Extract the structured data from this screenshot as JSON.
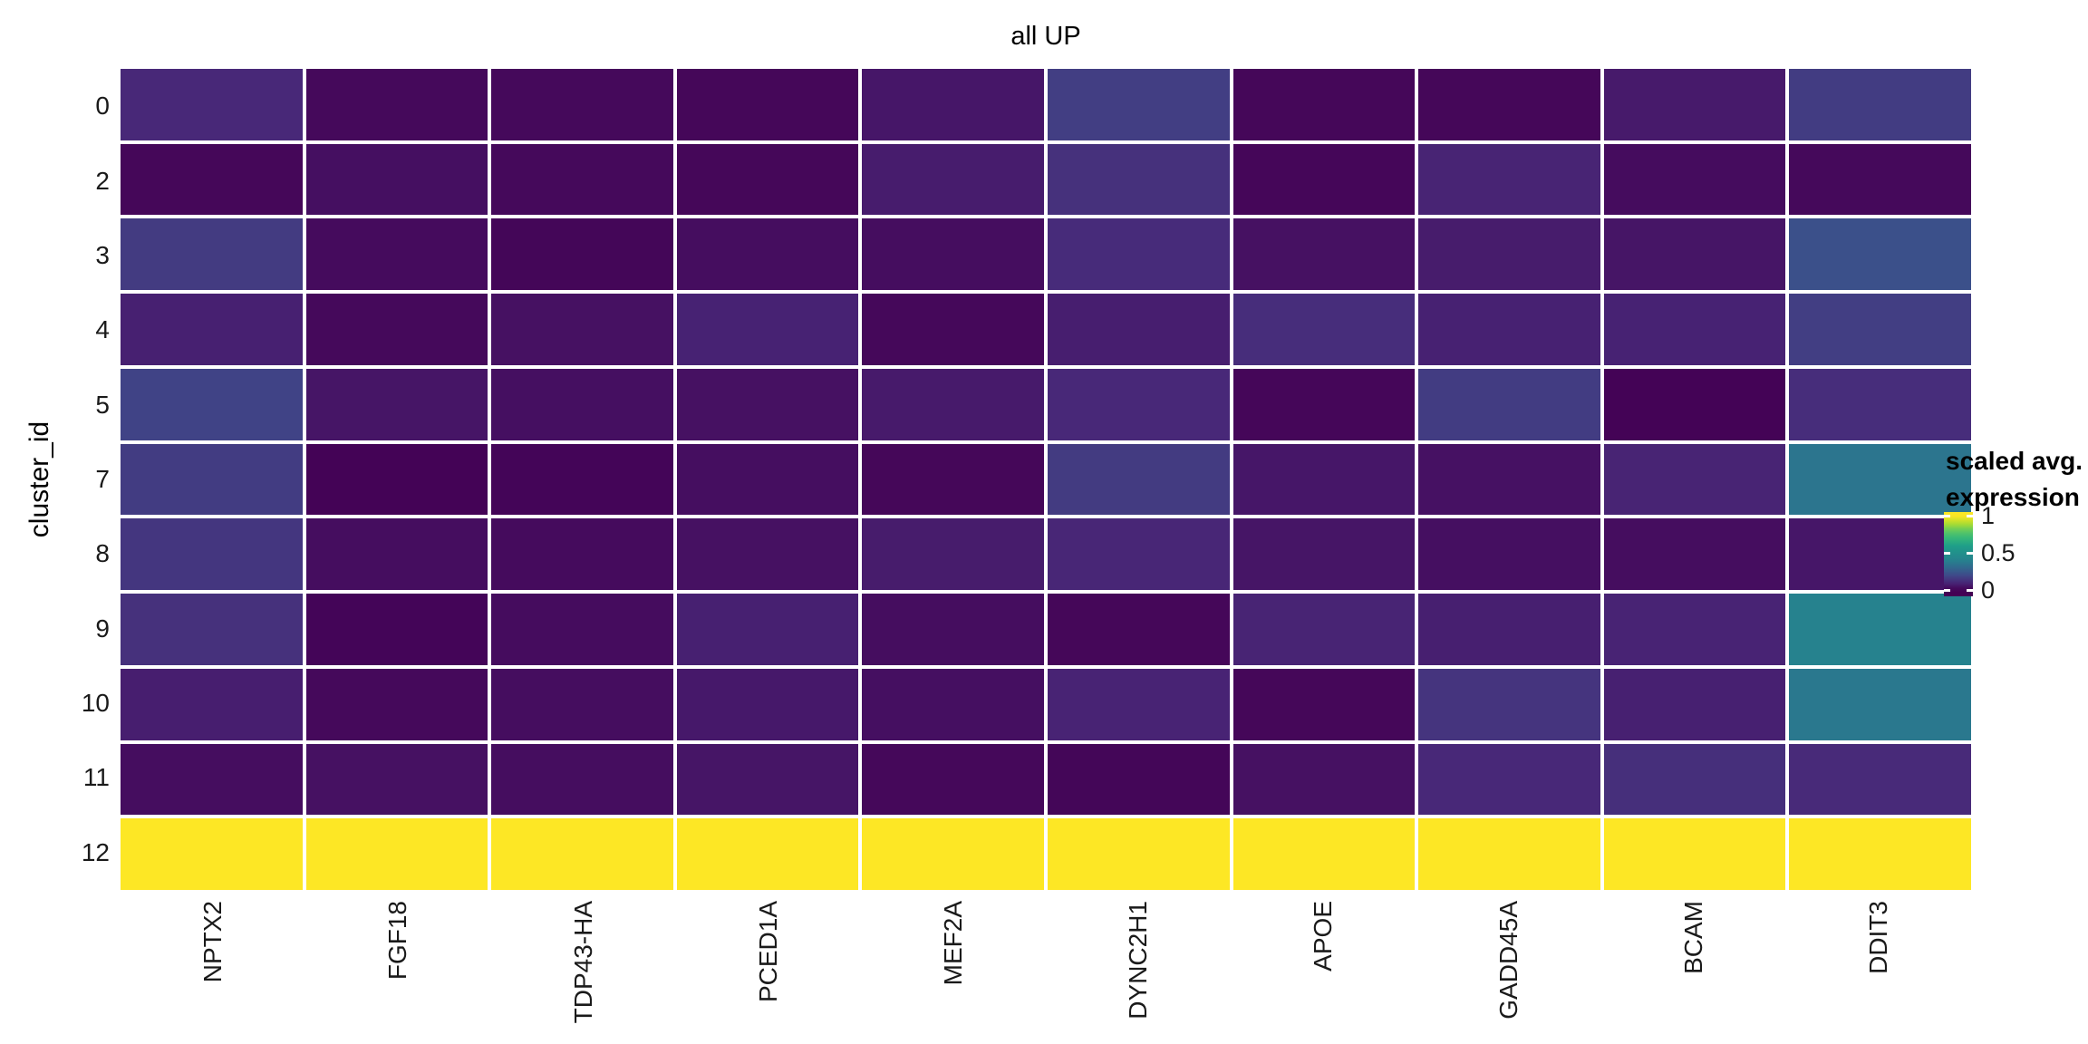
{
  "title": "all UP",
  "legend": {
    "title_line1": "scaled avg.",
    "title_line2": "expression",
    "ticks": [
      {
        "label": "1",
        "value": 1
      },
      {
        "label": "0.5",
        "value": 0.5
      },
      {
        "label": "0",
        "value": 0
      }
    ],
    "bar_domain_top": 1.05,
    "bar_domain_bottom": -0.085
  },
  "colors": {
    "background": "#ffffff",
    "panel_gap": "#ffffff",
    "tick_text": "#1a1a1a",
    "title_text": "#000000",
    "viridis_stops": [
      {
        "t": 0.0,
        "color": "#440154"
      },
      {
        "t": 0.1,
        "color": "#482878"
      },
      {
        "t": 0.2,
        "color": "#3e4a89"
      },
      {
        "t": 0.3,
        "color": "#31688e"
      },
      {
        "t": 0.4,
        "color": "#26828e"
      },
      {
        "t": 0.5,
        "color": "#21908c"
      },
      {
        "t": 0.6,
        "color": "#1fa088"
      },
      {
        "t": 0.7,
        "color": "#35b779"
      },
      {
        "t": 0.8,
        "color": "#5ec962"
      },
      {
        "t": 0.9,
        "color": "#b5de2b"
      },
      {
        "t": 1.0,
        "color": "#fde725"
      }
    ]
  },
  "chart_data": {
    "type": "heatmap",
    "title": "all UP",
    "xlabel": "",
    "ylabel": "cluster_id",
    "legend_title_line1": "scaled avg.",
    "legend_title_line2": "expression",
    "colormap": "viridis",
    "value_range": [
      0,
      1
    ],
    "legend_tick_values": [
      1,
      0.5,
      0
    ],
    "columns": [
      "NPTX2",
      "FGF18",
      "TDP43-HA",
      "PCED1A",
      "MEF2A",
      "DYNC2H1",
      "APOE",
      "GADD45A",
      "BCAM",
      "DDIT3"
    ],
    "rows": [
      "0",
      "2",
      "3",
      "4",
      "5",
      "7",
      "8",
      "9",
      "10",
      "11",
      "12"
    ],
    "values": [
      [
        0.1,
        0.02,
        0.02,
        0.015,
        0.055,
        0.165,
        0.015,
        0.015,
        0.063,
        0.16
      ],
      [
        0.015,
        0.035,
        0.02,
        0.015,
        0.07,
        0.125,
        0.013,
        0.09,
        0.028,
        0.02
      ],
      [
        0.155,
        0.025,
        0.012,
        0.03,
        0.03,
        0.11,
        0.04,
        0.068,
        0.05,
        0.22
      ],
      [
        0.08,
        0.02,
        0.04,
        0.085,
        0.018,
        0.075,
        0.115,
        0.082,
        0.085,
        0.165
      ],
      [
        0.18,
        0.05,
        0.035,
        0.04,
        0.065,
        0.1,
        0.013,
        0.16,
        0.005,
        0.115
      ],
      [
        0.16,
        0.005,
        0.01,
        0.033,
        0.015,
        0.155,
        0.055,
        0.042,
        0.09,
        0.35
      ],
      [
        0.14,
        0.03,
        0.025,
        0.04,
        0.068,
        0.095,
        0.05,
        0.035,
        0.03,
        0.055
      ],
      [
        0.125,
        0.01,
        0.028,
        0.08,
        0.03,
        0.015,
        0.09,
        0.078,
        0.088,
        0.4
      ],
      [
        0.075,
        0.02,
        0.03,
        0.06,
        0.035,
        0.088,
        0.015,
        0.135,
        0.08,
        0.36
      ],
      [
        0.03,
        0.04,
        0.03,
        0.05,
        0.018,
        0.012,
        0.04,
        0.1,
        0.12,
        0.105
      ],
      [
        1,
        1,
        1,
        1,
        1,
        1,
        1,
        1,
        1,
        1
      ]
    ]
  }
}
